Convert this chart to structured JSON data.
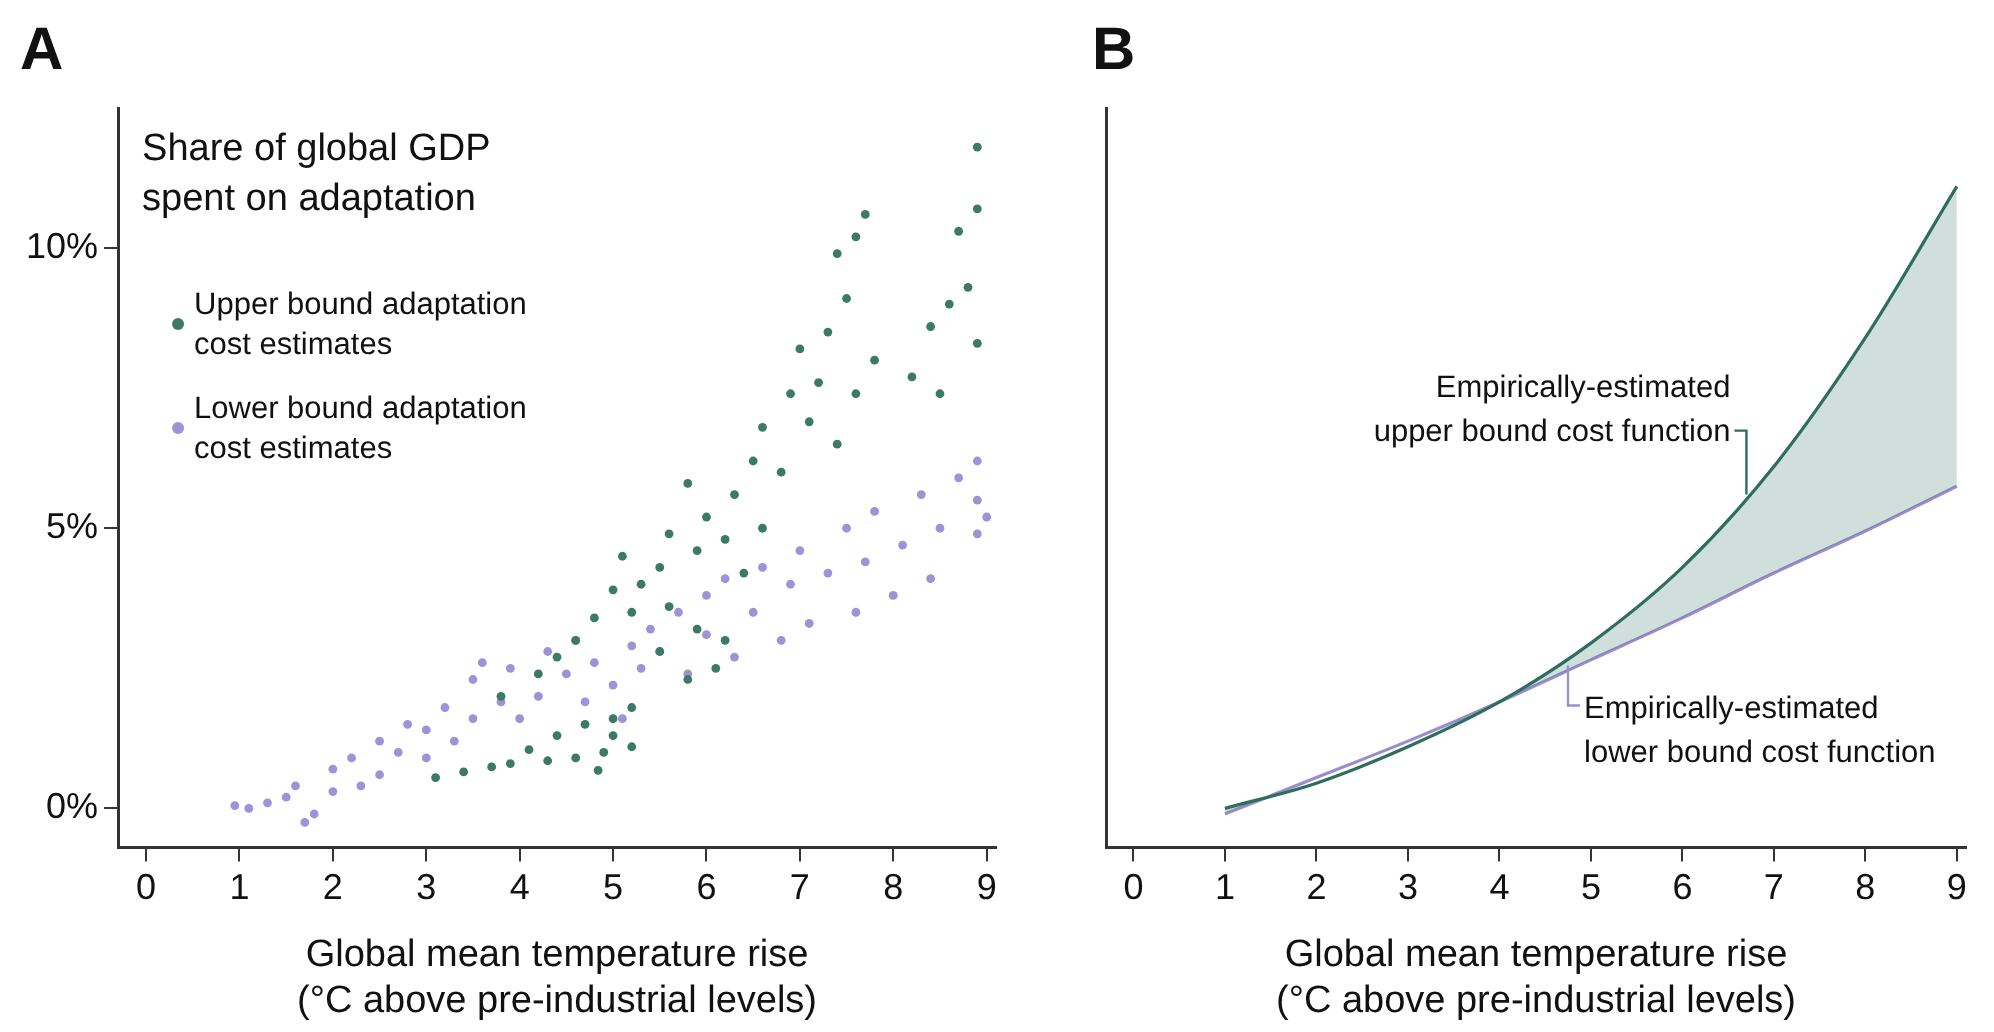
{
  "chart_data": [
    {
      "type": "scatter",
      "title": "A",
      "ylabel": "Share of global GDP\nspent on adaptation",
      "xlabel": "Global mean temperature rise\n(°C above pre-industrial levels)",
      "xlim": [
        -0.3,
        9.1
      ],
      "xticks": [
        0,
        1,
        2,
        3,
        4,
        5,
        6,
        7,
        8,
        9
      ],
      "ylim": [
        -0.7,
        12.5
      ],
      "yticks": [
        {
          "value": 0,
          "label": "0%"
        },
        {
          "value": 5,
          "label": "5%"
        },
        {
          "value": 10,
          "label": "10%"
        }
      ],
      "grid": false,
      "legend": "top left",
      "marker": "circle",
      "series": [
        {
          "name": "Upper bound adaptation cost estimates",
          "color": "#3a7a66",
          "x": [
            8.9,
            8.9,
            8.7,
            8.8,
            8.6,
            8.4,
            8.2,
            8.5,
            8.9,
            7.7,
            7.6,
            7.4,
            7.5,
            7.3,
            7.0,
            7.2,
            7.6,
            7.8,
            7.1,
            7.4,
            6.9,
            6.6,
            6.5,
            6.8,
            6.3,
            6.6,
            6.2,
            6.4,
            6.0,
            5.8,
            5.9,
            5.6,
            5.5,
            5.3,
            5.1,
            5.0,
            5.2,
            5.6,
            5.9,
            6.2,
            5.8,
            6.1,
            5.5,
            4.8,
            4.6,
            4.4,
            4.2,
            3.8,
            5.2,
            5.0,
            4.7,
            4.4,
            5.2,
            4.9,
            4.6,
            4.84,
            4.3,
            3.9,
            3.7,
            3.4,
            3.1,
            4.1,
            5.0
          ],
          "values": [
            11.8,
            10.7,
            10.3,
            9.3,
            9.0,
            8.6,
            7.7,
            7.4,
            8.3,
            10.6,
            10.2,
            9.9,
            9.1,
            8.5,
            8.2,
            7.6,
            7.4,
            8.0,
            6.9,
            6.5,
            7.4,
            6.8,
            6.2,
            6.0,
            5.6,
            5.0,
            4.8,
            4.2,
            5.2,
            5.8,
            4.6,
            4.9,
            4.3,
            4.0,
            4.5,
            3.9,
            3.5,
            3.6,
            3.2,
            3.0,
            2.3,
            2.5,
            2.8,
            3.4,
            3.0,
            2.7,
            2.4,
            2.0,
            1.8,
            1.6,
            1.5,
            1.3,
            1.1,
            1.0,
            0.9,
            0.68,
            0.85,
            0.8,
            0.74,
            0.65,
            0.55,
            1.05,
            1.3
          ]
        },
        {
          "name": "Lower bound adaptation cost estimates",
          "color": "#9d93d6",
          "x": [
            0.95,
            1.1,
            1.3,
            1.5,
            1.7,
            1.8,
            1.6,
            2.0,
            2.0,
            2.2,
            2.3,
            2.5,
            2.5,
            2.7,
            2.8,
            3.0,
            3.0,
            3.2,
            3.3,
            3.5,
            3.5,
            3.6,
            3.8,
            3.9,
            4.0,
            4.2,
            4.3,
            4.5,
            4.6,
            4.7,
            4.8,
            5.0,
            5.2,
            5.1,
            5.3,
            5.4,
            5.5,
            5.7,
            5.8,
            6.0,
            6.0,
            6.2,
            6.3,
            6.5,
            6.6,
            6.8,
            6.9,
            7.0,
            7.1,
            7.3,
            7.5,
            7.6,
            7.7,
            7.8,
            8.0,
            8.1,
            8.3,
            8.4,
            8.5,
            8.7,
            8.9,
            8.9,
            8.9,
            9.0
          ],
          "values": [
            0.05,
            0.0,
            0.1,
            0.2,
            -0.25,
            -0.1,
            0.4,
            0.3,
            0.7,
            0.9,
            0.4,
            0.6,
            1.2,
            1.0,
            1.5,
            0.9,
            1.4,
            1.8,
            1.2,
            1.6,
            2.3,
            2.6,
            1.9,
            2.5,
            1.6,
            2.0,
            2.8,
            2.4,
            3.0,
            1.9,
            2.6,
            2.2,
            2.9,
            1.6,
            2.5,
            3.2,
            2.8,
            3.5,
            2.4,
            3.1,
            3.8,
            4.1,
            2.7,
            3.5,
            4.3,
            3.0,
            4.0,
            4.6,
            3.3,
            4.2,
            5.0,
            3.5,
            4.4,
            5.3,
            3.8,
            4.7,
            5.6,
            4.1,
            5.0,
            5.9,
            6.2,
            5.5,
            4.9,
            5.2
          ]
        }
      ]
    },
    {
      "type": "line",
      "title": "B",
      "xlabel": "Global mean temperature rise\n(°C above pre-industrial levels)",
      "xlim": [
        -0.3,
        9.1
      ],
      "xticks": [
        0,
        1,
        2,
        3,
        4,
        5,
        6,
        7,
        8,
        9
      ],
      "ylim": [
        -0.7,
        12.5
      ],
      "tick_labels": "x",
      "grid": false,
      "marker": "none",
      "x": [
        1,
        2,
        3,
        4,
        5,
        6,
        7,
        8,
        9
      ],
      "series": [
        {
          "color": "#2e6e5e",
          "values": [
            0.0,
            0.45,
            1.1,
            1.9,
            2.95,
            4.3,
            6.1,
            8.4,
            11.1
          ],
          "lower": [
            -0.1,
            0.55,
            1.2,
            1.9,
            2.65,
            3.4,
            4.2,
            4.95,
            5.75
          ],
          "upper": [
            0.0,
            0.45,
            1.1,
            1.9,
            2.95,
            4.3,
            6.1,
            8.4,
            11.1
          ]
        },
        {
          "color": "#9c8fd0",
          "values": [
            -0.1,
            0.55,
            1.2,
            1.9,
            2.65,
            3.4,
            4.2,
            4.95,
            5.75
          ]
        }
      ],
      "annotations": [
        {
          "text": "Empirically-estimated\nupper bound cost function",
          "x": 6.7,
          "y": 5.6
        },
        {
          "text": "Empirically-estimated\nlower bound cost function",
          "x": 4.75,
          "y": 2.55
        }
      ]
    }
  ]
}
